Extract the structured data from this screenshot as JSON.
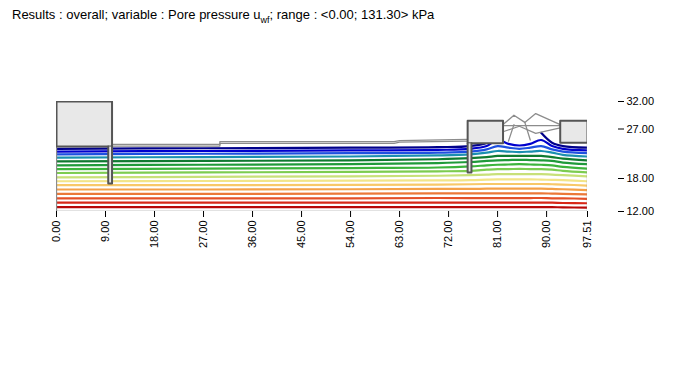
{
  "chart_data": {
    "type": "contour",
    "title": [
      "Results : overall; variable : Pore pressure u",
      {
        "sub": "wf"
      },
      "; range : <0.00; 131.30> kPa"
    ],
    "xlim": [
      0,
      97.51
    ],
    "ylim": [
      12,
      32
    ],
    "xticks": [
      {
        "value": 0,
        "label": "0.00"
      },
      {
        "value": 9,
        "label": "9.00"
      },
      {
        "value": 18,
        "label": "18.00"
      },
      {
        "value": 27,
        "label": "27.00"
      },
      {
        "value": 36,
        "label": "36.00"
      },
      {
        "value": 45,
        "label": "45.00"
      },
      {
        "value": 54,
        "label": "54.00"
      },
      {
        "value": 63,
        "label": "63.00"
      },
      {
        "value": 72,
        "label": "72.00"
      },
      {
        "value": 81,
        "label": "81.00"
      },
      {
        "value": 90,
        "label": "90.00"
      },
      {
        "value": 97.51,
        "label": "97.51"
      }
    ],
    "yticks": [
      {
        "value": 12,
        "label": "12.00"
      },
      {
        "value": 18,
        "label": "18.00"
      },
      {
        "value": 27,
        "label": "27.00"
      },
      {
        "value": 32,
        "label": "32.00"
      }
    ],
    "x": [
      0,
      27,
      54,
      70,
      76,
      79,
      81,
      83,
      85,
      87,
      89,
      91,
      93,
      97.51
    ],
    "series": [
      {
        "color": "#00008b",
        "values": [
          23.4,
          23.5,
          23.6,
          23.7,
          23.9,
          24.5,
          26.3,
          null,
          null,
          null,
          26.3,
          24.5,
          23.9,
          23.6
        ]
      },
      {
        "color": "#0000cd",
        "values": [
          22.9,
          23.0,
          23.1,
          23.2,
          23.4,
          23.9,
          25.0,
          24.3,
          24.0,
          24.3,
          25.0,
          23.9,
          23.4,
          23.1
        ]
      },
      {
        "color": "#1e50e0",
        "values": [
          22.4,
          22.5,
          22.6,
          22.7,
          22.9,
          23.3,
          23.9,
          23.6,
          23.4,
          23.6,
          23.9,
          23.3,
          22.9,
          22.6
        ]
      },
      {
        "color": "#1a8fb0",
        "values": [
          21.8,
          21.9,
          22.0,
          22.2,
          22.4,
          22.7,
          23.0,
          22.9,
          22.8,
          22.9,
          23.0,
          22.7,
          22.3,
          22.0
        ]
      },
      {
        "color": "#0f7a30",
        "values": [
          21.1,
          21.2,
          21.3,
          21.5,
          21.7,
          21.9,
          22.1,
          22.1,
          22.1,
          22.1,
          22.1,
          21.9,
          21.6,
          21.3
        ]
      },
      {
        "color": "#1f9a3a",
        "values": [
          20.4,
          20.5,
          20.6,
          20.8,
          21.0,
          21.2,
          21.3,
          21.35,
          21.4,
          21.35,
          21.3,
          21.2,
          20.9,
          20.6
        ]
      },
      {
        "color": "#3cb43c",
        "values": [
          19.7,
          19.8,
          19.9,
          20.0,
          20.2,
          20.4,
          20.5,
          20.55,
          20.6,
          20.55,
          20.5,
          20.4,
          20.1,
          19.8
        ]
      },
      {
        "color": "#7ccc50",
        "values": [
          19.0,
          19.1,
          19.2,
          19.3,
          19.4,
          19.6,
          19.7,
          19.7,
          19.75,
          19.7,
          19.7,
          19.6,
          19.4,
          19.1
        ]
      },
      {
        "color": "#c8e078",
        "values": [
          18.2,
          18.3,
          18.4,
          18.5,
          18.6,
          18.7,
          18.8,
          18.8,
          18.8,
          18.8,
          18.8,
          18.7,
          18.6,
          18.4
        ]
      },
      {
        "color": "#f2e488",
        "values": [
          17.5,
          17.55,
          17.6,
          17.65,
          17.7,
          17.8,
          17.85,
          17.85,
          17.85,
          17.85,
          17.8,
          17.75,
          17.7,
          17.5
        ]
      },
      {
        "color": "#f8c868",
        "values": [
          16.8,
          16.8,
          16.85,
          16.9,
          16.95,
          17.0,
          17.0,
          17.0,
          17.0,
          17.0,
          17.0,
          16.95,
          16.9,
          16.7
        ]
      },
      {
        "color": "#f4a048",
        "values": [
          16.0,
          16.0,
          16.05,
          16.1,
          16.1,
          16.15,
          16.15,
          16.15,
          16.15,
          16.15,
          16.15,
          16.1,
          16.05,
          15.9
        ]
      },
      {
        "color": "#ec7838",
        "values": [
          15.2,
          15.2,
          15.25,
          15.3,
          15.3,
          15.3,
          15.3,
          15.3,
          15.3,
          15.3,
          15.3,
          15.25,
          15.2,
          15.1
        ]
      },
      {
        "color": "#e45028",
        "values": [
          14.4,
          14.4,
          14.4,
          14.45,
          14.45,
          14.45,
          14.45,
          14.45,
          14.45,
          14.45,
          14.45,
          14.4,
          14.4,
          14.3
        ]
      },
      {
        "color": "#d82818",
        "values": [
          13.6,
          13.6,
          13.6,
          13.6,
          13.6,
          13.6,
          13.6,
          13.6,
          13.6,
          13.6,
          13.6,
          13.6,
          13.55,
          13.5
        ]
      },
      {
        "color": "#b80808",
        "values": [
          12.8,
          12.8,
          12.8,
          12.8,
          12.8,
          12.8,
          12.8,
          12.8,
          12.8,
          12.8,
          12.8,
          12.8,
          12.75,
          12.7
        ]
      }
    ],
    "structures": [
      [
        [
          0,
          23.8
        ],
        [
          0,
          32
        ],
        [
          10.2,
          32
        ],
        [
          10.2,
          23.8
        ],
        [
          0,
          23.8
        ]
      ],
      [
        [
          9.5,
          23.8
        ],
        [
          9.5,
          17.1
        ],
        [
          10.2,
          17.1
        ],
        [
          10.2,
          23.8
        ]
      ],
      [
        [
          75.5,
          24.4
        ],
        [
          75.5,
          28.5
        ],
        [
          82,
          28.5
        ],
        [
          82,
          24.4
        ],
        [
          75.5,
          24.4
        ]
      ],
      [
        [
          75.5,
          24.4
        ],
        [
          75.5,
          19.1
        ],
        [
          76.2,
          19.1
        ],
        [
          76.2,
          24.4
        ]
      ],
      [
        [
          92.5,
          24.5
        ],
        [
          92.5,
          28.5
        ],
        [
          97.51,
          28.5
        ],
        [
          97.51,
          24.5
        ],
        [
          92.5,
          24.5
        ]
      ]
    ],
    "lines": [
      [
        [
          0,
          24.2
        ],
        [
          0,
          12
        ],
        [
          97.51,
          12
        ],
        [
          97.51,
          24.2
        ]
      ],
      [
        [
          10.2,
          23.9
        ],
        [
          30,
          23.9
        ],
        [
          30,
          24.4
        ],
        [
          62,
          24.4
        ],
        [
          63,
          24.6
        ],
        [
          75.5,
          24.8
        ]
      ],
      [
        [
          10.2,
          24.2
        ],
        [
          30,
          24.2
        ],
        [
          30,
          24.7
        ],
        [
          62,
          24.7
        ],
        [
          63,
          24.9
        ],
        [
          75.5,
          25.1
        ]
      ],
      [
        [
          82,
          27.8
        ],
        [
          84,
          29.5
        ],
        [
          86,
          28.2
        ],
        [
          88,
          29.8
        ],
        [
          92.5,
          27.8
        ]
      ],
      [
        [
          82,
          26.5
        ],
        [
          85,
          27.5
        ],
        [
          88,
          26.2
        ],
        [
          92.5,
          27.2
        ]
      ],
      [
        [
          84,
          27.8
        ],
        [
          83,
          24.8
        ]
      ],
      [
        [
          86,
          28.2
        ],
        [
          87,
          25.0
        ]
      ],
      [
        [
          82,
          27.6
        ],
        [
          92.5,
          27.6
        ]
      ]
    ]
  }
}
